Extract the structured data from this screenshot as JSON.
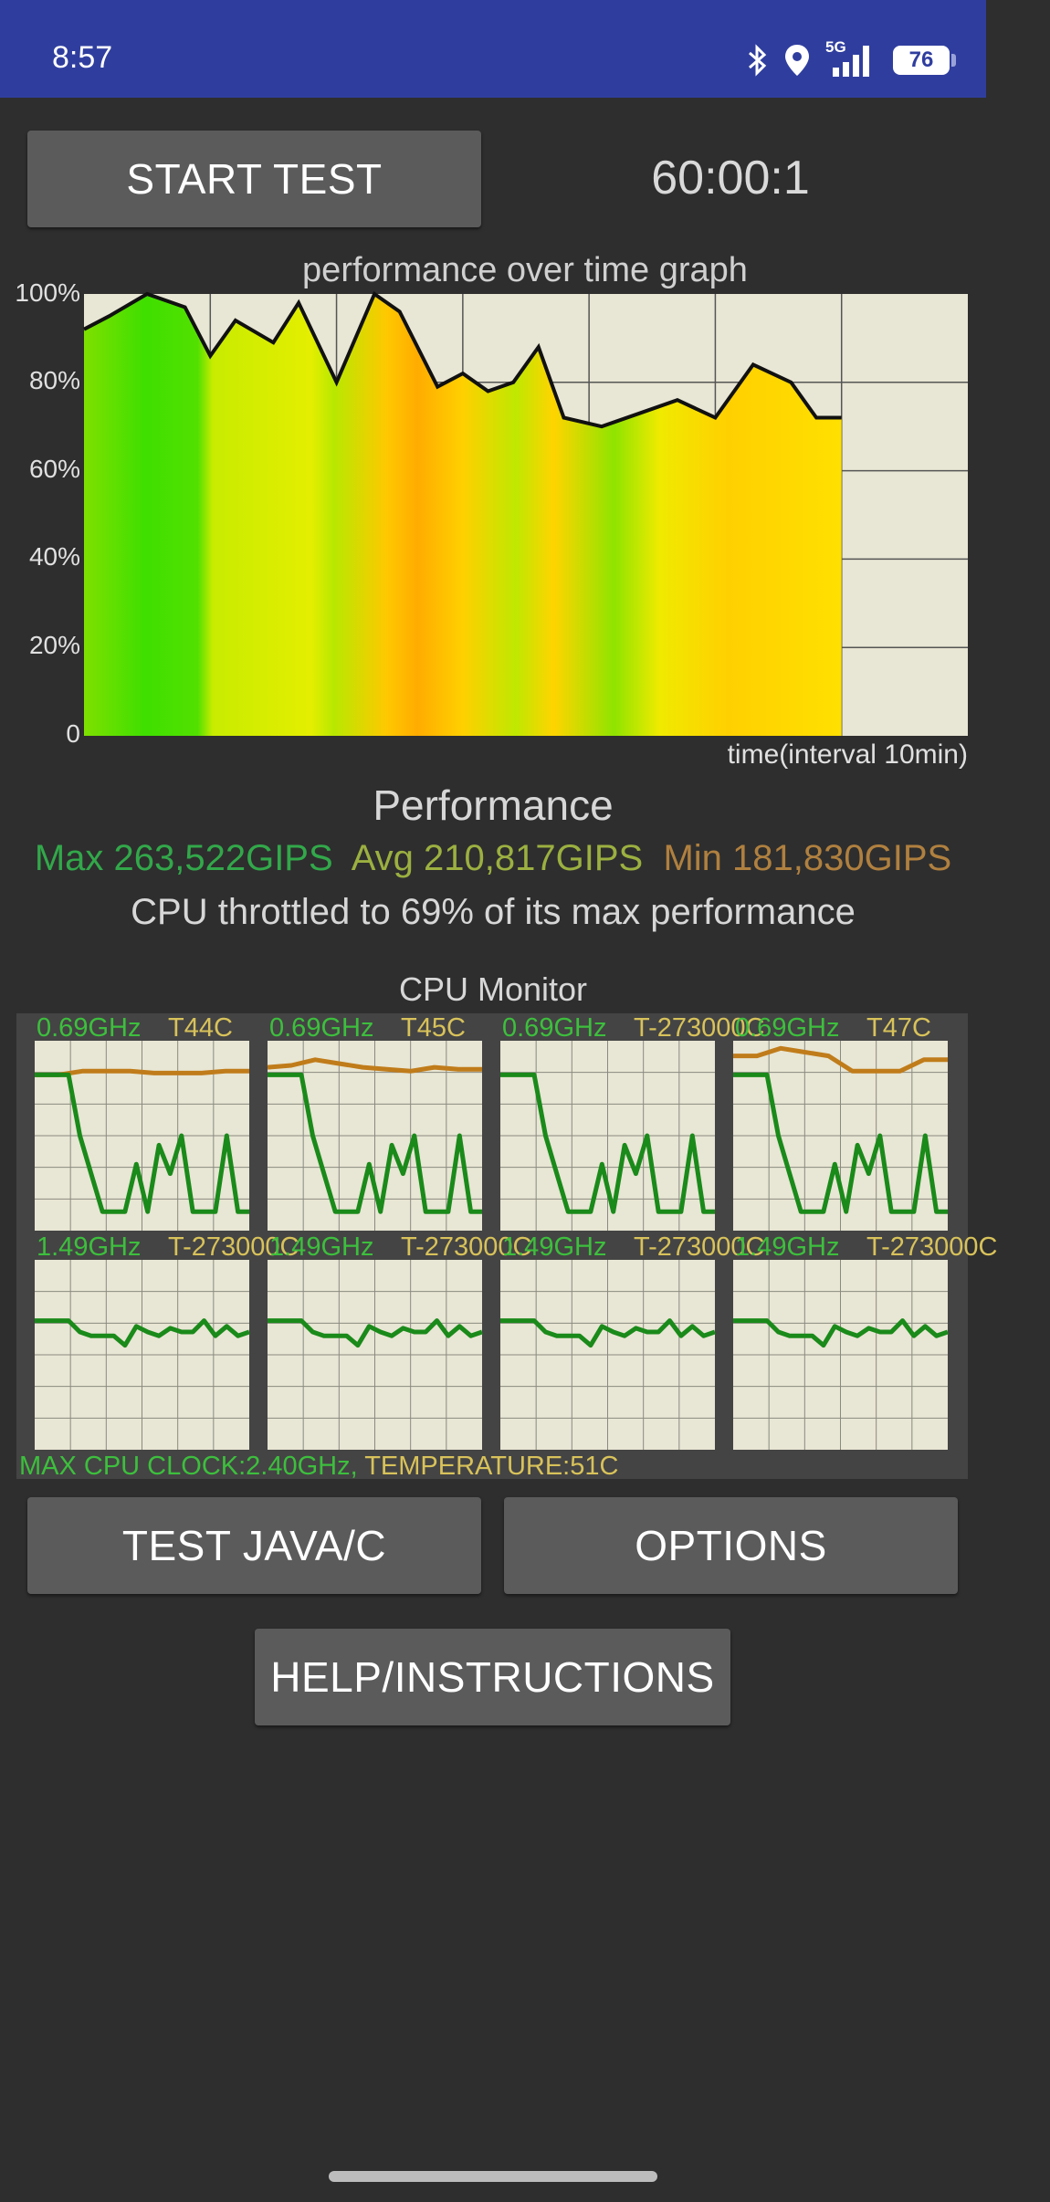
{
  "status_bar": {
    "time": "8:57",
    "network": "5G",
    "battery": "76"
  },
  "controls": {
    "start_label": "START TEST",
    "timer": "60:00:1"
  },
  "graph": {
    "title": "performance over time graph",
    "y_ticks": [
      "100%",
      "80%",
      "60%",
      "40%",
      "20%",
      "0"
    ],
    "x_caption": "time(interval 10min)"
  },
  "chart_data": {
    "type": "area",
    "title": "performance over time graph",
    "xlabel": "time(interval 10min)",
    "ylabel": "",
    "ylim": [
      0,
      100
    ],
    "grid": true,
    "x_minutes": [
      0,
      2,
      5,
      8,
      10,
      12,
      15,
      17,
      20,
      23,
      25,
      28,
      30,
      32,
      34,
      36,
      38,
      41,
      44,
      47,
      50,
      53,
      56,
      58,
      60
    ],
    "values": [
      92,
      95,
      100,
      97,
      86,
      94,
      89,
      98,
      80,
      100,
      96,
      79,
      82,
      78,
      80,
      88,
      72,
      70,
      73,
      76,
      72,
      84,
      80,
      72,
      72
    ]
  },
  "performance": {
    "title": "Performance",
    "max": "Max 263,522GIPS",
    "avg": "Avg 210,817GIPS",
    "min": "Min 181,830GIPS",
    "throttle": "CPU throttled to 69% of its max performance"
  },
  "cpu_monitor": {
    "title": "CPU Monitor",
    "cores": [
      {
        "freq": "0.69GHz",
        "temp": "T44C",
        "freq_level": [
          0.82,
          0.82,
          0.82,
          0.82,
          0.5,
          0.3,
          0.1,
          0.1,
          0.1,
          0.35,
          0.1,
          0.45,
          0.3,
          0.5,
          0.1,
          0.1,
          0.1,
          0.5,
          0.1,
          0.1
        ],
        "temp_level": [
          0.82,
          0.82,
          0.84,
          0.84,
          0.84,
          0.83,
          0.83,
          0.83,
          0.84,
          0.84
        ]
      },
      {
        "freq": "0.69GHz",
        "temp": "T45C",
        "freq_level": [
          0.82,
          0.82,
          0.82,
          0.82,
          0.5,
          0.3,
          0.1,
          0.1,
          0.1,
          0.35,
          0.1,
          0.45,
          0.3,
          0.5,
          0.1,
          0.1,
          0.1,
          0.5,
          0.1,
          0.1
        ],
        "temp_level": [
          0.86,
          0.87,
          0.9,
          0.88,
          0.86,
          0.85,
          0.84,
          0.86,
          0.85,
          0.85
        ]
      },
      {
        "freq": "0.69GHz",
        "temp": "T-273000C",
        "freq_level": [
          0.82,
          0.82,
          0.82,
          0.82,
          0.5,
          0.3,
          0.1,
          0.1,
          0.1,
          0.35,
          0.1,
          0.45,
          0.3,
          0.5,
          0.1,
          0.1,
          0.1,
          0.5,
          0.1,
          0.1
        ],
        "temp_level": []
      },
      {
        "freq": "0.69GHz",
        "temp": "T47C",
        "freq_level": [
          0.82,
          0.82,
          0.82,
          0.82,
          0.5,
          0.3,
          0.1,
          0.1,
          0.1,
          0.35,
          0.1,
          0.45,
          0.3,
          0.5,
          0.1,
          0.1,
          0.1,
          0.5,
          0.1,
          0.1
        ],
        "temp_level": [
          0.92,
          0.92,
          0.96,
          0.94,
          0.92,
          0.84,
          0.84,
          0.84,
          0.9,
          0.9
        ]
      },
      {
        "freq": "1.49GHz",
        "temp": "T-273000C",
        "freq_level": [
          0.68,
          0.68,
          0.68,
          0.68,
          0.62,
          0.6,
          0.6,
          0.6,
          0.55,
          0.65,
          0.62,
          0.6,
          0.64,
          0.62,
          0.62,
          0.68,
          0.6,
          0.65,
          0.6,
          0.62
        ],
        "temp_level": []
      },
      {
        "freq": "1.49GHz",
        "temp": "T-273000C",
        "freq_level": [
          0.68,
          0.68,
          0.68,
          0.68,
          0.62,
          0.6,
          0.6,
          0.6,
          0.55,
          0.65,
          0.62,
          0.6,
          0.64,
          0.62,
          0.62,
          0.68,
          0.6,
          0.65,
          0.6,
          0.62
        ],
        "temp_level": []
      },
      {
        "freq": "1.49GHz",
        "temp": "T-273000C",
        "freq_level": [
          0.68,
          0.68,
          0.68,
          0.68,
          0.62,
          0.6,
          0.6,
          0.6,
          0.55,
          0.65,
          0.62,
          0.6,
          0.64,
          0.62,
          0.62,
          0.68,
          0.6,
          0.65,
          0.6,
          0.62
        ],
        "temp_level": []
      },
      {
        "freq": "1.49GHz",
        "temp": "T-273000C",
        "freq_level": [
          0.68,
          0.68,
          0.68,
          0.68,
          0.62,
          0.6,
          0.6,
          0.6,
          0.55,
          0.65,
          0.62,
          0.6,
          0.64,
          0.62,
          0.62,
          0.68,
          0.6,
          0.65,
          0.6,
          0.62
        ],
        "temp_level": []
      }
    ],
    "max_clock": "MAX CPU CLOCK:2.40GHz,",
    "temperature": "TEMPERATURE:51C"
  },
  "buttons": {
    "test_java": "TEST JAVA/C",
    "options": "OPTIONS",
    "help": "HELP/INSTRUCTIONS"
  },
  "colors": {
    "status_bar": "#2f3e9e",
    "background": "#2e2e2e",
    "button": "#5b5b5b",
    "graph_bg": "#e8e6d4",
    "freq_line": "#1a8a1a",
    "temp_line": "#c07c1a"
  }
}
